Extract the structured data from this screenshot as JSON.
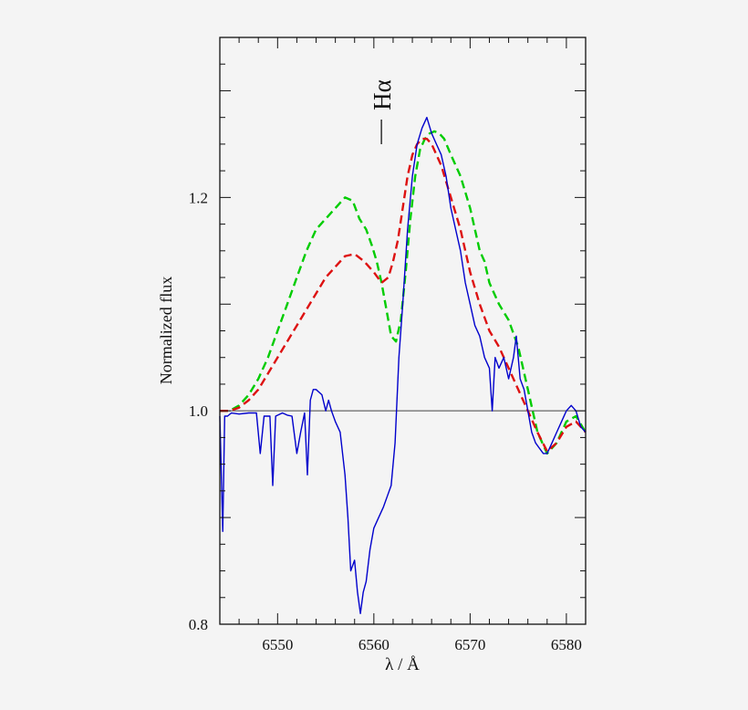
{
  "chart_data": {
    "type": "line",
    "xlabel": "λ / Å",
    "ylabel": "Normalized flux",
    "xlim": [
      6544,
      6582
    ],
    "ylim": [
      0.8,
      1.35
    ],
    "x_ticks": [
      6550,
      6560,
      6570,
      6580
    ],
    "y_ticks": [
      0.8,
      1.0,
      1.2
    ],
    "y_tick_labels": [
      "0.8",
      "1.0",
      "1.2"
    ],
    "reference_line_y": 1.0,
    "grid": false,
    "annotation": {
      "text": "Hα",
      "x": 6560.5,
      "y": 1.27
    },
    "series": [
      {
        "name": "",
        "style": "solid",
        "color": "#0000cc",
        "x": [
          6544.0,
          6544.3,
          6544.5,
          6544.8,
          6545.2,
          6546.0,
          6547.0,
          6547.8,
          6548.2,
          6548.6,
          6549.2,
          6549.5,
          6549.8,
          6550.5,
          6551.0,
          6551.5,
          6552.0,
          6552.4,
          6552.8,
          6553.1,
          6553.4,
          6553.7,
          6554.0,
          6554.6,
          6555.0,
          6555.3,
          6555.6,
          6556.0,
          6556.5,
          6557.0,
          6557.3,
          6557.6,
          6558.0,
          6558.3,
          6558.6,
          6558.9,
          6559.2,
          6559.6,
          6560.0,
          6560.5,
          6561.0,
          6561.4,
          6561.8,
          6562.2,
          6562.6,
          6563.0,
          6563.5,
          6564.0,
          6564.5,
          6565.0,
          6565.5,
          6566.0,
          6566.5,
          6567.0,
          6567.5,
          6568.0,
          6568.5,
          6569.0,
          6569.5,
          6570.0,
          6570.5,
          6571.0,
          6571.5,
          6572.0,
          6572.3,
          6572.6,
          6573.0,
          6573.5,
          6574.0,
          6574.5,
          6574.8,
          6575.2,
          6575.6,
          6576.0,
          6576.4,
          6576.8,
          6577.2,
          6577.6,
          6578.0,
          6578.5,
          6579.0,
          6579.5,
          6580.0,
          6580.5,
          6581.0,
          6581.5,
          6582.0
        ],
        "y": [
          0.995,
          0.887,
          0.995,
          0.995,
          0.998,
          0.997,
          0.998,
          0.998,
          0.96,
          0.995,
          0.995,
          0.93,
          0.995,
          0.998,
          0.996,
          0.995,
          0.96,
          0.98,
          0.998,
          0.94,
          1.01,
          1.02,
          1.02,
          1.015,
          1.0,
          1.01,
          1.0,
          0.99,
          0.98,
          0.94,
          0.9,
          0.85,
          0.86,
          0.83,
          0.81,
          0.83,
          0.84,
          0.87,
          0.89,
          0.9,
          0.91,
          0.92,
          0.93,
          0.97,
          1.05,
          1.1,
          1.17,
          1.22,
          1.25,
          1.265,
          1.275,
          1.26,
          1.25,
          1.24,
          1.22,
          1.19,
          1.17,
          1.15,
          1.12,
          1.1,
          1.08,
          1.07,
          1.05,
          1.04,
          1.0,
          1.05,
          1.04,
          1.05,
          1.03,
          1.05,
          1.07,
          1.03,
          1.02,
          1.0,
          0.98,
          0.97,
          0.965,
          0.96,
          0.96,
          0.97,
          0.98,
          0.99,
          1.0,
          1.005,
          1.0,
          0.985,
          0.98
        ]
      },
      {
        "name": "",
        "style": "dashed",
        "color": "#00cc00",
        "x": [
          6544.0,
          6545.0,
          6546.0,
          6547.0,
          6548.0,
          6549.0,
          6550.0,
          6551.0,
          6552.0,
          6553.0,
          6554.0,
          6555.0,
          6556.0,
          6557.0,
          6557.8,
          6558.5,
          6559.2,
          6559.8,
          6560.3,
          6560.8,
          6561.3,
          6561.8,
          6562.3,
          6562.8,
          6563.3,
          6563.8,
          6564.3,
          6564.8,
          6565.3,
          6565.8,
          6566.3,
          6566.8,
          6567.3,
          6568.0,
          6569.0,
          6570.0,
          6571.0,
          6571.5,
          6572.0,
          6573.0,
          6574.0,
          6575.0,
          6576.0,
          6577.0,
          6578.0,
          6579.0,
          6580.0,
          6581.0,
          6582.0
        ],
        "y": [
          1.0,
          1.0,
          1.005,
          1.015,
          1.03,
          1.05,
          1.075,
          1.1,
          1.125,
          1.15,
          1.17,
          1.18,
          1.19,
          1.2,
          1.197,
          1.18,
          1.17,
          1.155,
          1.14,
          1.12,
          1.095,
          1.07,
          1.065,
          1.085,
          1.13,
          1.18,
          1.22,
          1.245,
          1.255,
          1.26,
          1.262,
          1.26,
          1.255,
          1.24,
          1.22,
          1.19,
          1.15,
          1.14,
          1.12,
          1.1,
          1.085,
          1.06,
          1.02,
          0.98,
          0.96,
          0.97,
          0.99,
          0.995,
          0.98
        ]
      },
      {
        "name": "",
        "style": "dashed",
        "color": "#dd1111",
        "x": [
          6544.0,
          6545.0,
          6546.0,
          6547.0,
          6548.0,
          6549.0,
          6550.0,
          6551.0,
          6552.0,
          6553.0,
          6554.0,
          6555.0,
          6556.0,
          6557.0,
          6558.0,
          6559.0,
          6560.0,
          6560.8,
          6561.5,
          6562.0,
          6562.5,
          6563.0,
          6563.5,
          6564.0,
          6564.5,
          6565.0,
          6565.5,
          6566.0,
          6567.0,
          6568.0,
          6569.0,
          6570.0,
          6571.0,
          6572.0,
          6573.0,
          6574.0,
          6575.0,
          6576.0,
          6577.0,
          6578.0,
          6579.0,
          6580.0,
          6581.0,
          6582.0
        ],
        "y": [
          1.0,
          1.0,
          1.003,
          1.01,
          1.02,
          1.035,
          1.05,
          1.065,
          1.08,
          1.095,
          1.11,
          1.125,
          1.135,
          1.145,
          1.147,
          1.14,
          1.13,
          1.12,
          1.125,
          1.14,
          1.16,
          1.19,
          1.22,
          1.24,
          1.25,
          1.255,
          1.255,
          1.25,
          1.23,
          1.2,
          1.17,
          1.13,
          1.1,
          1.075,
          1.06,
          1.04,
          1.02,
          1.0,
          0.98,
          0.962,
          0.97,
          0.985,
          0.99,
          0.98
        ]
      }
    ]
  }
}
